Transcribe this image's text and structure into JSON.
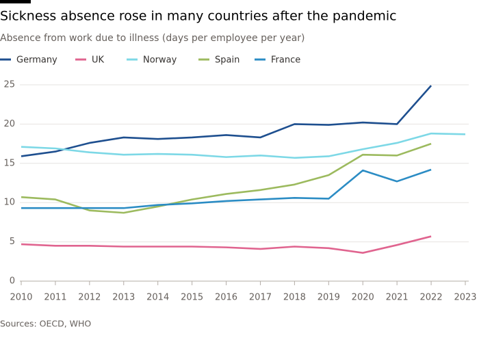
{
  "chart_data": {
    "type": "line",
    "title": "Sickness absence rose in many countries after the pandemic",
    "subtitle": "Absence from work due to illness (days per employee per year)",
    "source": "Sources: OECD, WHO",
    "x": [
      2010,
      2011,
      2012,
      2013,
      2014,
      2015,
      2016,
      2017,
      2018,
      2019,
      2020,
      2021,
      2022,
      2023
    ],
    "xlim": [
      2010,
      2023
    ],
    "xticks": [
      2010,
      2011,
      2012,
      2013,
      2014,
      2015,
      2016,
      2017,
      2018,
      2019,
      2020,
      2021,
      2022,
      2023
    ],
    "ylim": [
      0,
      25
    ],
    "yticks": [
      0,
      5,
      10,
      15,
      20,
      25
    ],
    "grid": true,
    "series": [
      {
        "name": "Germany",
        "color": "#1e4f8f",
        "values": [
          15.9,
          16.5,
          17.6,
          18.3,
          18.1,
          18.3,
          18.6,
          18.3,
          20.0,
          19.9,
          20.2,
          20.0,
          24.9,
          null
        ]
      },
      {
        "name": "UK",
        "color": "#e0648f",
        "values": [
          4.7,
          4.5,
          4.5,
          4.4,
          4.4,
          4.4,
          4.3,
          4.1,
          4.4,
          4.2,
          3.6,
          4.6,
          5.7,
          null
        ]
      },
      {
        "name": "Norway",
        "color": "#7dd8e6",
        "values": [
          17.1,
          16.9,
          16.4,
          16.1,
          16.2,
          16.1,
          15.8,
          16.0,
          15.7,
          15.9,
          16.8,
          17.6,
          18.8,
          18.7
        ]
      },
      {
        "name": "Spain",
        "color": "#9cba5e",
        "values": [
          10.7,
          10.4,
          9.0,
          8.7,
          9.5,
          10.4,
          11.1,
          11.6,
          12.3,
          13.5,
          16.1,
          16.0,
          17.5,
          null
        ]
      },
      {
        "name": "France",
        "color": "#2b8cc4",
        "values": [
          9.3,
          9.3,
          9.3,
          9.3,
          9.7,
          9.9,
          10.2,
          10.4,
          10.6,
          10.5,
          14.1,
          12.7,
          14.2,
          null
        ]
      }
    ]
  }
}
